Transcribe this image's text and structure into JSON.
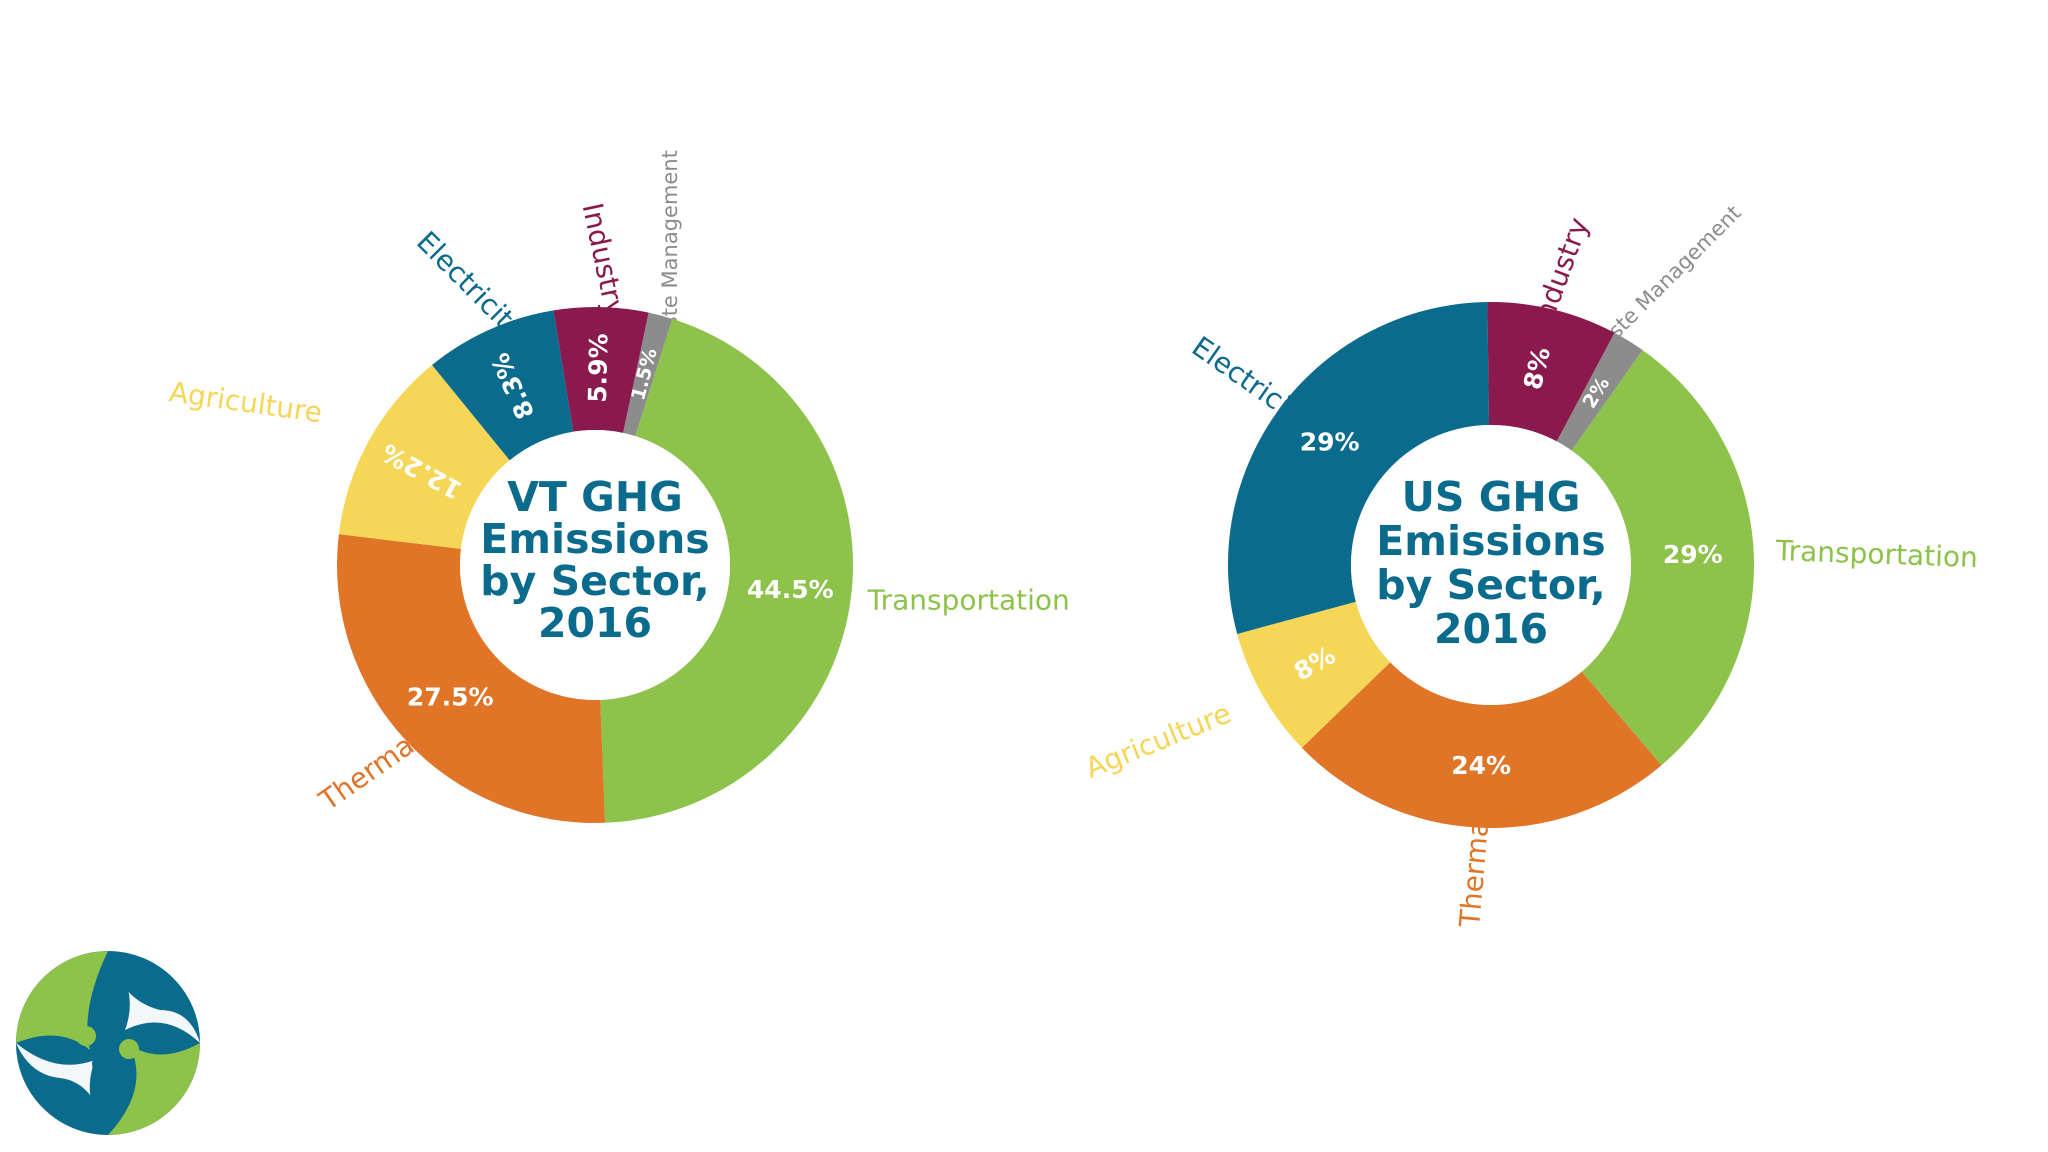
{
  "chart_data": [
    {
      "type": "pie",
      "title_lines": [
        "VT GHG",
        "Emissions",
        "by Sector,",
        "2016"
      ],
      "slices": [
        {
          "name": "Waste Management",
          "value": 1.5,
          "label": "1.5%",
          "color": "#8c8c8c"
        },
        {
          "name": "Transportation",
          "value": 44.5,
          "label": "44.5%",
          "color": "#8dc24b"
        },
        {
          "name": "Thermal",
          "value": 27.5,
          "label": "27.5%",
          "color": "#e07528"
        },
        {
          "name": "Agriculture",
          "value": 12.2,
          "label": "12.2%",
          "color": "#f5d657"
        },
        {
          "name": "Electricity",
          "value": 8.3,
          "label": "8.3%",
          "color": "#0a6b8c"
        },
        {
          "name": "Industry",
          "value": 5.9,
          "label": "5.9%",
          "color": "#8a1a4e"
        }
      ],
      "title_color": "#0a6b8c"
    },
    {
      "type": "pie",
      "title_lines": [
        "US GHG",
        "Emissions",
        "by Sector,",
        "2016"
      ],
      "slices": [
        {
          "name": "Waste Management",
          "value": 2,
          "label": "2%",
          "color": "#8c8c8c"
        },
        {
          "name": "Transportation",
          "value": 29,
          "label": "29%",
          "color": "#8dc24b"
        },
        {
          "name": "Thermal",
          "value": 24,
          "label": "24%",
          "color": "#e07528"
        },
        {
          "name": "Agriculture",
          "value": 8,
          "label": "8%",
          "color": "#f5d657"
        },
        {
          "name": "Electricity",
          "value": 29,
          "label": "29%",
          "color": "#0a6b8c"
        },
        {
          "name": "Industry",
          "value": 8,
          "label": "8%",
          "color": "#8a1a4e"
        }
      ],
      "title_color": "#0a6b8c"
    }
  ],
  "logo": {
    "colors": [
      "#0a6b8c",
      "#8dc24b"
    ],
    "icon": "organization-logo"
  }
}
